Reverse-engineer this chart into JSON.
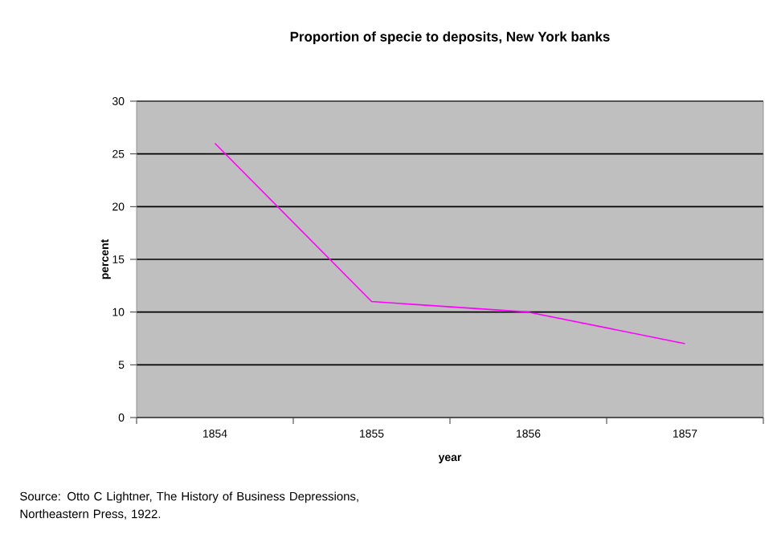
{
  "chart_data": {
    "type": "line",
    "title": "Proportion of specie to deposits, New York banks",
    "xlabel": "year",
    "ylabel": "percent",
    "categories": [
      "1854",
      "1855",
      "1856",
      "1857"
    ],
    "series": [
      {
        "color": "#ff00ff",
        "values": [
          26,
          11,
          10,
          7
        ]
      }
    ],
    "ylim": [
      0,
      30
    ],
    "yticks": [
      0,
      5,
      10,
      15,
      20,
      25,
      30
    ],
    "grid": "y",
    "marker": "none",
    "line_style": "solid",
    "annotations": [
      "Source: Otto C Lightner, The History of Business Depressions, Northeastern Press, 1922."
    ]
  }
}
